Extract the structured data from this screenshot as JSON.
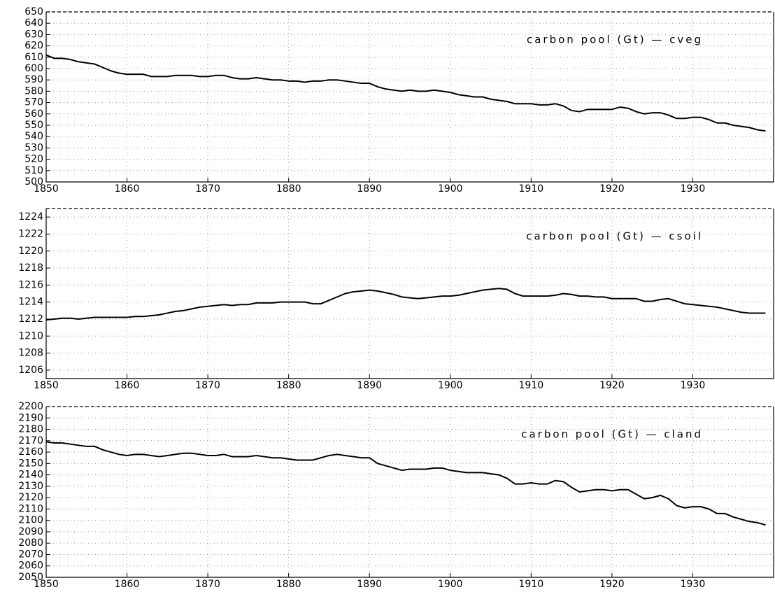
{
  "chart_data": [
    {
      "type": "line",
      "annotation": "carbon pool (Gt) — cveg",
      "color": "#000000",
      "grid": true,
      "x": [
        1850,
        1851,
        1852,
        1853,
        1854,
        1855,
        1856,
        1857,
        1858,
        1859,
        1860,
        1861,
        1862,
        1863,
        1864,
        1865,
        1866,
        1867,
        1868,
        1869,
        1870,
        1871,
        1872,
        1873,
        1874,
        1875,
        1876,
        1877,
        1878,
        1879,
        1880,
        1881,
        1882,
        1883,
        1884,
        1885,
        1886,
        1887,
        1888,
        1889,
        1890,
        1891,
        1892,
        1893,
        1894,
        1895,
        1896,
        1897,
        1898,
        1899,
        1900,
        1901,
        1902,
        1903,
        1904,
        1905,
        1906,
        1907,
        1908,
        1909,
        1910,
        1911,
        1912,
        1913,
        1914,
        1915,
        1916,
        1917,
        1918,
        1919,
        1920,
        1921,
        1922,
        1923,
        1924,
        1925,
        1926,
        1927,
        1928,
        1929,
        1930,
        1931,
        1932,
        1933,
        1934,
        1935,
        1936,
        1937,
        1938,
        1939
      ],
      "values": [
        612,
        609,
        609,
        608,
        606,
        605,
        604,
        601,
        598,
        596,
        595,
        595,
        595,
        593,
        593,
        593,
        594,
        594,
        594,
        593,
        593,
        594,
        594,
        592,
        591,
        591,
        592,
        591,
        590,
        590,
        589,
        589,
        588,
        589,
        589,
        590,
        590,
        589,
        588,
        587,
        587,
        584,
        582,
        581,
        580,
        581,
        580,
        580,
        581,
        580,
        579,
        577,
        576,
        575,
        575,
        573,
        572,
        571,
        569,
        569,
        569,
        568,
        568,
        569,
        567,
        563,
        562,
        564,
        564,
        564,
        564,
        566,
        565,
        562,
        560,
        561,
        561,
        559,
        556,
        556,
        557,
        557,
        555,
        552,
        552,
        550,
        549,
        548,
        546,
        545
      ],
      "xlim": [
        1850,
        1940
      ],
      "xticks": [
        1850,
        1860,
        1870,
        1880,
        1890,
        1900,
        1910,
        1920,
        1930
      ],
      "ylim": [
        500,
        650
      ],
      "yticks": [
        500,
        510,
        520,
        530,
        540,
        550,
        560,
        570,
        580,
        590,
        600,
        610,
        620,
        630,
        640,
        650
      ]
    },
    {
      "type": "line",
      "annotation": "carbon pool (Gt) — csoil",
      "color": "#000000",
      "grid": true,
      "x": [
        1850,
        1851,
        1852,
        1853,
        1854,
        1855,
        1856,
        1857,
        1858,
        1859,
        1860,
        1861,
        1862,
        1863,
        1864,
        1865,
        1866,
        1867,
        1868,
        1869,
        1870,
        1871,
        1872,
        1873,
        1874,
        1875,
        1876,
        1877,
        1878,
        1879,
        1880,
        1881,
        1882,
        1883,
        1884,
        1885,
        1886,
        1887,
        1888,
        1889,
        1890,
        1891,
        1892,
        1893,
        1894,
        1895,
        1896,
        1897,
        1898,
        1899,
        1900,
        1901,
        1902,
        1903,
        1904,
        1905,
        1906,
        1907,
        1908,
        1909,
        1910,
        1911,
        1912,
        1913,
        1914,
        1915,
        1916,
        1917,
        1918,
        1919,
        1920,
        1921,
        1922,
        1923,
        1924,
        1925,
        1926,
        1927,
        1928,
        1929,
        1930,
        1931,
        1932,
        1933,
        1934,
        1935,
        1936,
        1937,
        1938,
        1939
      ],
      "values": [
        1211.9,
        1212.0,
        1212.1,
        1212.1,
        1212.0,
        1212.1,
        1212.2,
        1212.2,
        1212.2,
        1212.2,
        1212.2,
        1212.3,
        1212.3,
        1212.4,
        1212.5,
        1212.7,
        1212.9,
        1213.0,
        1213.2,
        1213.4,
        1213.5,
        1213.6,
        1213.7,
        1213.6,
        1213.7,
        1213.7,
        1213.9,
        1213.9,
        1213.9,
        1214.0,
        1214.0,
        1214.0,
        1214.0,
        1213.8,
        1213.8,
        1214.2,
        1214.6,
        1215.0,
        1215.2,
        1215.3,
        1215.4,
        1215.3,
        1215.1,
        1214.9,
        1214.6,
        1214.5,
        1214.4,
        1214.5,
        1214.6,
        1214.7,
        1214.7,
        1214.8,
        1215.0,
        1215.2,
        1215.4,
        1215.5,
        1215.6,
        1215.5,
        1215.0,
        1214.7,
        1214.7,
        1214.7,
        1214.7,
        1214.8,
        1215.0,
        1214.9,
        1214.7,
        1214.7,
        1214.6,
        1214.6,
        1214.4,
        1214.4,
        1214.4,
        1214.4,
        1214.1,
        1214.1,
        1214.3,
        1214.4,
        1214.1,
        1213.8,
        1213.7,
        1213.6,
        1213.5,
        1213.4,
        1213.2,
        1213.0,
        1212.8,
        1212.7,
        1212.7,
        1212.7
      ],
      "xlim": [
        1850,
        1940
      ],
      "xticks": [
        1850,
        1860,
        1870,
        1880,
        1890,
        1900,
        1910,
        1920,
        1930
      ],
      "ylim": [
        1205,
        1225
      ],
      "yticks": [
        1206,
        1208,
        1210,
        1212,
        1214,
        1216,
        1218,
        1220,
        1222,
        1224
      ]
    },
    {
      "type": "line",
      "annotation": "carbon pool (Gt) — cland",
      "color": "#000000",
      "grid": true,
      "x": [
        1850,
        1851,
        1852,
        1853,
        1854,
        1855,
        1856,
        1857,
        1858,
        1859,
        1860,
        1861,
        1862,
        1863,
        1864,
        1865,
        1866,
        1867,
        1868,
        1869,
        1870,
        1871,
        1872,
        1873,
        1874,
        1875,
        1876,
        1877,
        1878,
        1879,
        1880,
        1881,
        1882,
        1883,
        1884,
        1885,
        1886,
        1887,
        1888,
        1889,
        1890,
        1891,
        1892,
        1893,
        1894,
        1895,
        1896,
        1897,
        1898,
        1899,
        1900,
        1901,
        1902,
        1903,
        1904,
        1905,
        1906,
        1907,
        1908,
        1909,
        1910,
        1911,
        1912,
        1913,
        1914,
        1915,
        1916,
        1917,
        1918,
        1919,
        1920,
        1921,
        1922,
        1923,
        1924,
        1925,
        1926,
        1927,
        1928,
        1929,
        1930,
        1931,
        1932,
        1933,
        1934,
        1935,
        1936,
        1937,
        1938,
        1939
      ],
      "values": [
        2169,
        2168,
        2168,
        2167,
        2166,
        2165,
        2165,
        2162,
        2160,
        2158,
        2157,
        2158,
        2158,
        2157,
        2156,
        2157,
        2158,
        2159,
        2159,
        2158,
        2157,
        2157,
        2158,
        2156,
        2156,
        2156,
        2157,
        2156,
        2155,
        2155,
        2154,
        2153,
        2153,
        2153,
        2155,
        2157,
        2158,
        2157,
        2156,
        2155,
        2155,
        2150,
        2148,
        2146,
        2144,
        2145,
        2145,
        2145,
        2146,
        2146,
        2144,
        2143,
        2142,
        2142,
        2142,
        2141,
        2140,
        2137,
        2132,
        2132,
        2133,
        2132,
        2132,
        2135,
        2134,
        2129,
        2125,
        2126,
        2127,
        2127,
        2126,
        2127,
        2127,
        2123,
        2119,
        2120,
        2122,
        2119,
        2113,
        2111,
        2112,
        2112,
        2110,
        2106,
        2106,
        2103,
        2101,
        2099,
        2098,
        2096
      ],
      "xlim": [
        1850,
        1940
      ],
      "xticks": [
        1850,
        1860,
        1870,
        1880,
        1890,
        1900,
        1910,
        1920,
        1930
      ],
      "ylim": [
        2050,
        2200
      ],
      "yticks": [
        2050,
        2060,
        2070,
        2080,
        2090,
        2100,
        2110,
        2120,
        2130,
        2140,
        2150,
        2160,
        2170,
        2180,
        2190,
        2200
      ]
    }
  ]
}
